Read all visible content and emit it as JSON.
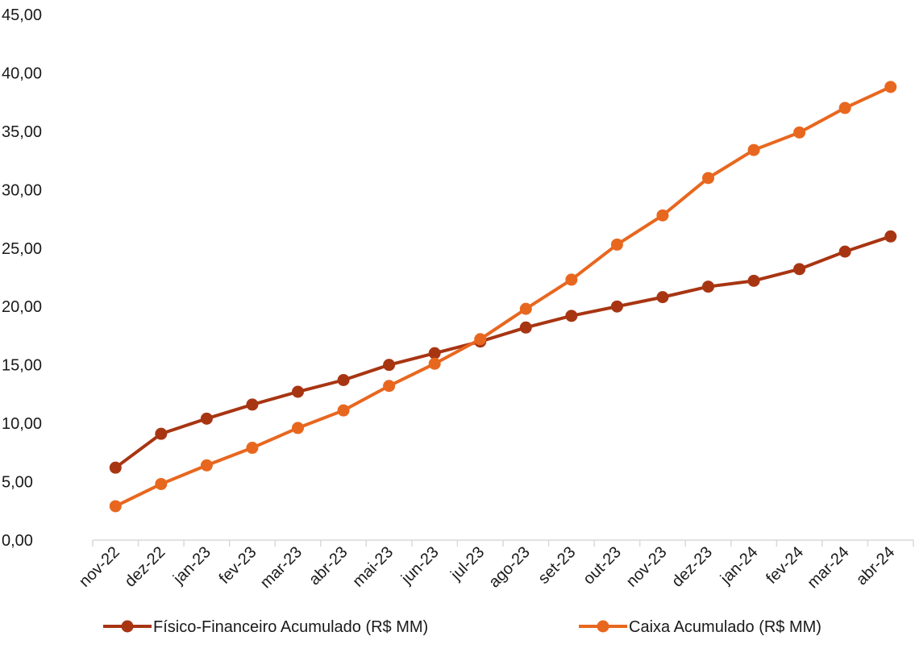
{
  "chart_data": {
    "type": "line",
    "title": "",
    "xlabel": "",
    "ylabel": "",
    "ylim": [
      0,
      45
    ],
    "yticks": [
      "0,00",
      "5,00",
      "10,00",
      "15,00",
      "20,00",
      "25,00",
      "30,00",
      "35,00",
      "40,00",
      "45,00"
    ],
    "grid": false,
    "legend_position": "bottom",
    "categories": [
      "nov-22",
      "dez-22",
      "jan-23",
      "fev-23",
      "mar-23",
      "abr-23",
      "mai-23",
      "jun-23",
      "jul-23",
      "ago-23",
      "set-23",
      "out-23",
      "nov-23",
      "dez-23",
      "jan-24",
      "fev-24",
      "mar-24",
      "abr-24"
    ],
    "series": [
      {
        "name": "Físico-Financeiro Acumulado (R$ MM)",
        "color": "#a83512",
        "values": [
          6.2,
          9.1,
          10.4,
          11.6,
          12.7,
          13.7,
          15.0,
          16.0,
          17.0,
          18.2,
          19.2,
          20.0,
          20.8,
          21.7,
          22.2,
          23.2,
          24.7,
          26.0
        ]
      },
      {
        "name": "Caixa Acumulado (R$ MM)",
        "color": "#e8671f",
        "values": [
          2.9,
          4.8,
          6.4,
          7.9,
          9.6,
          11.1,
          13.2,
          15.1,
          17.2,
          19.8,
          22.3,
          25.3,
          27.8,
          31.0,
          33.4,
          34.9,
          37.0,
          38.8
        ]
      }
    ]
  }
}
